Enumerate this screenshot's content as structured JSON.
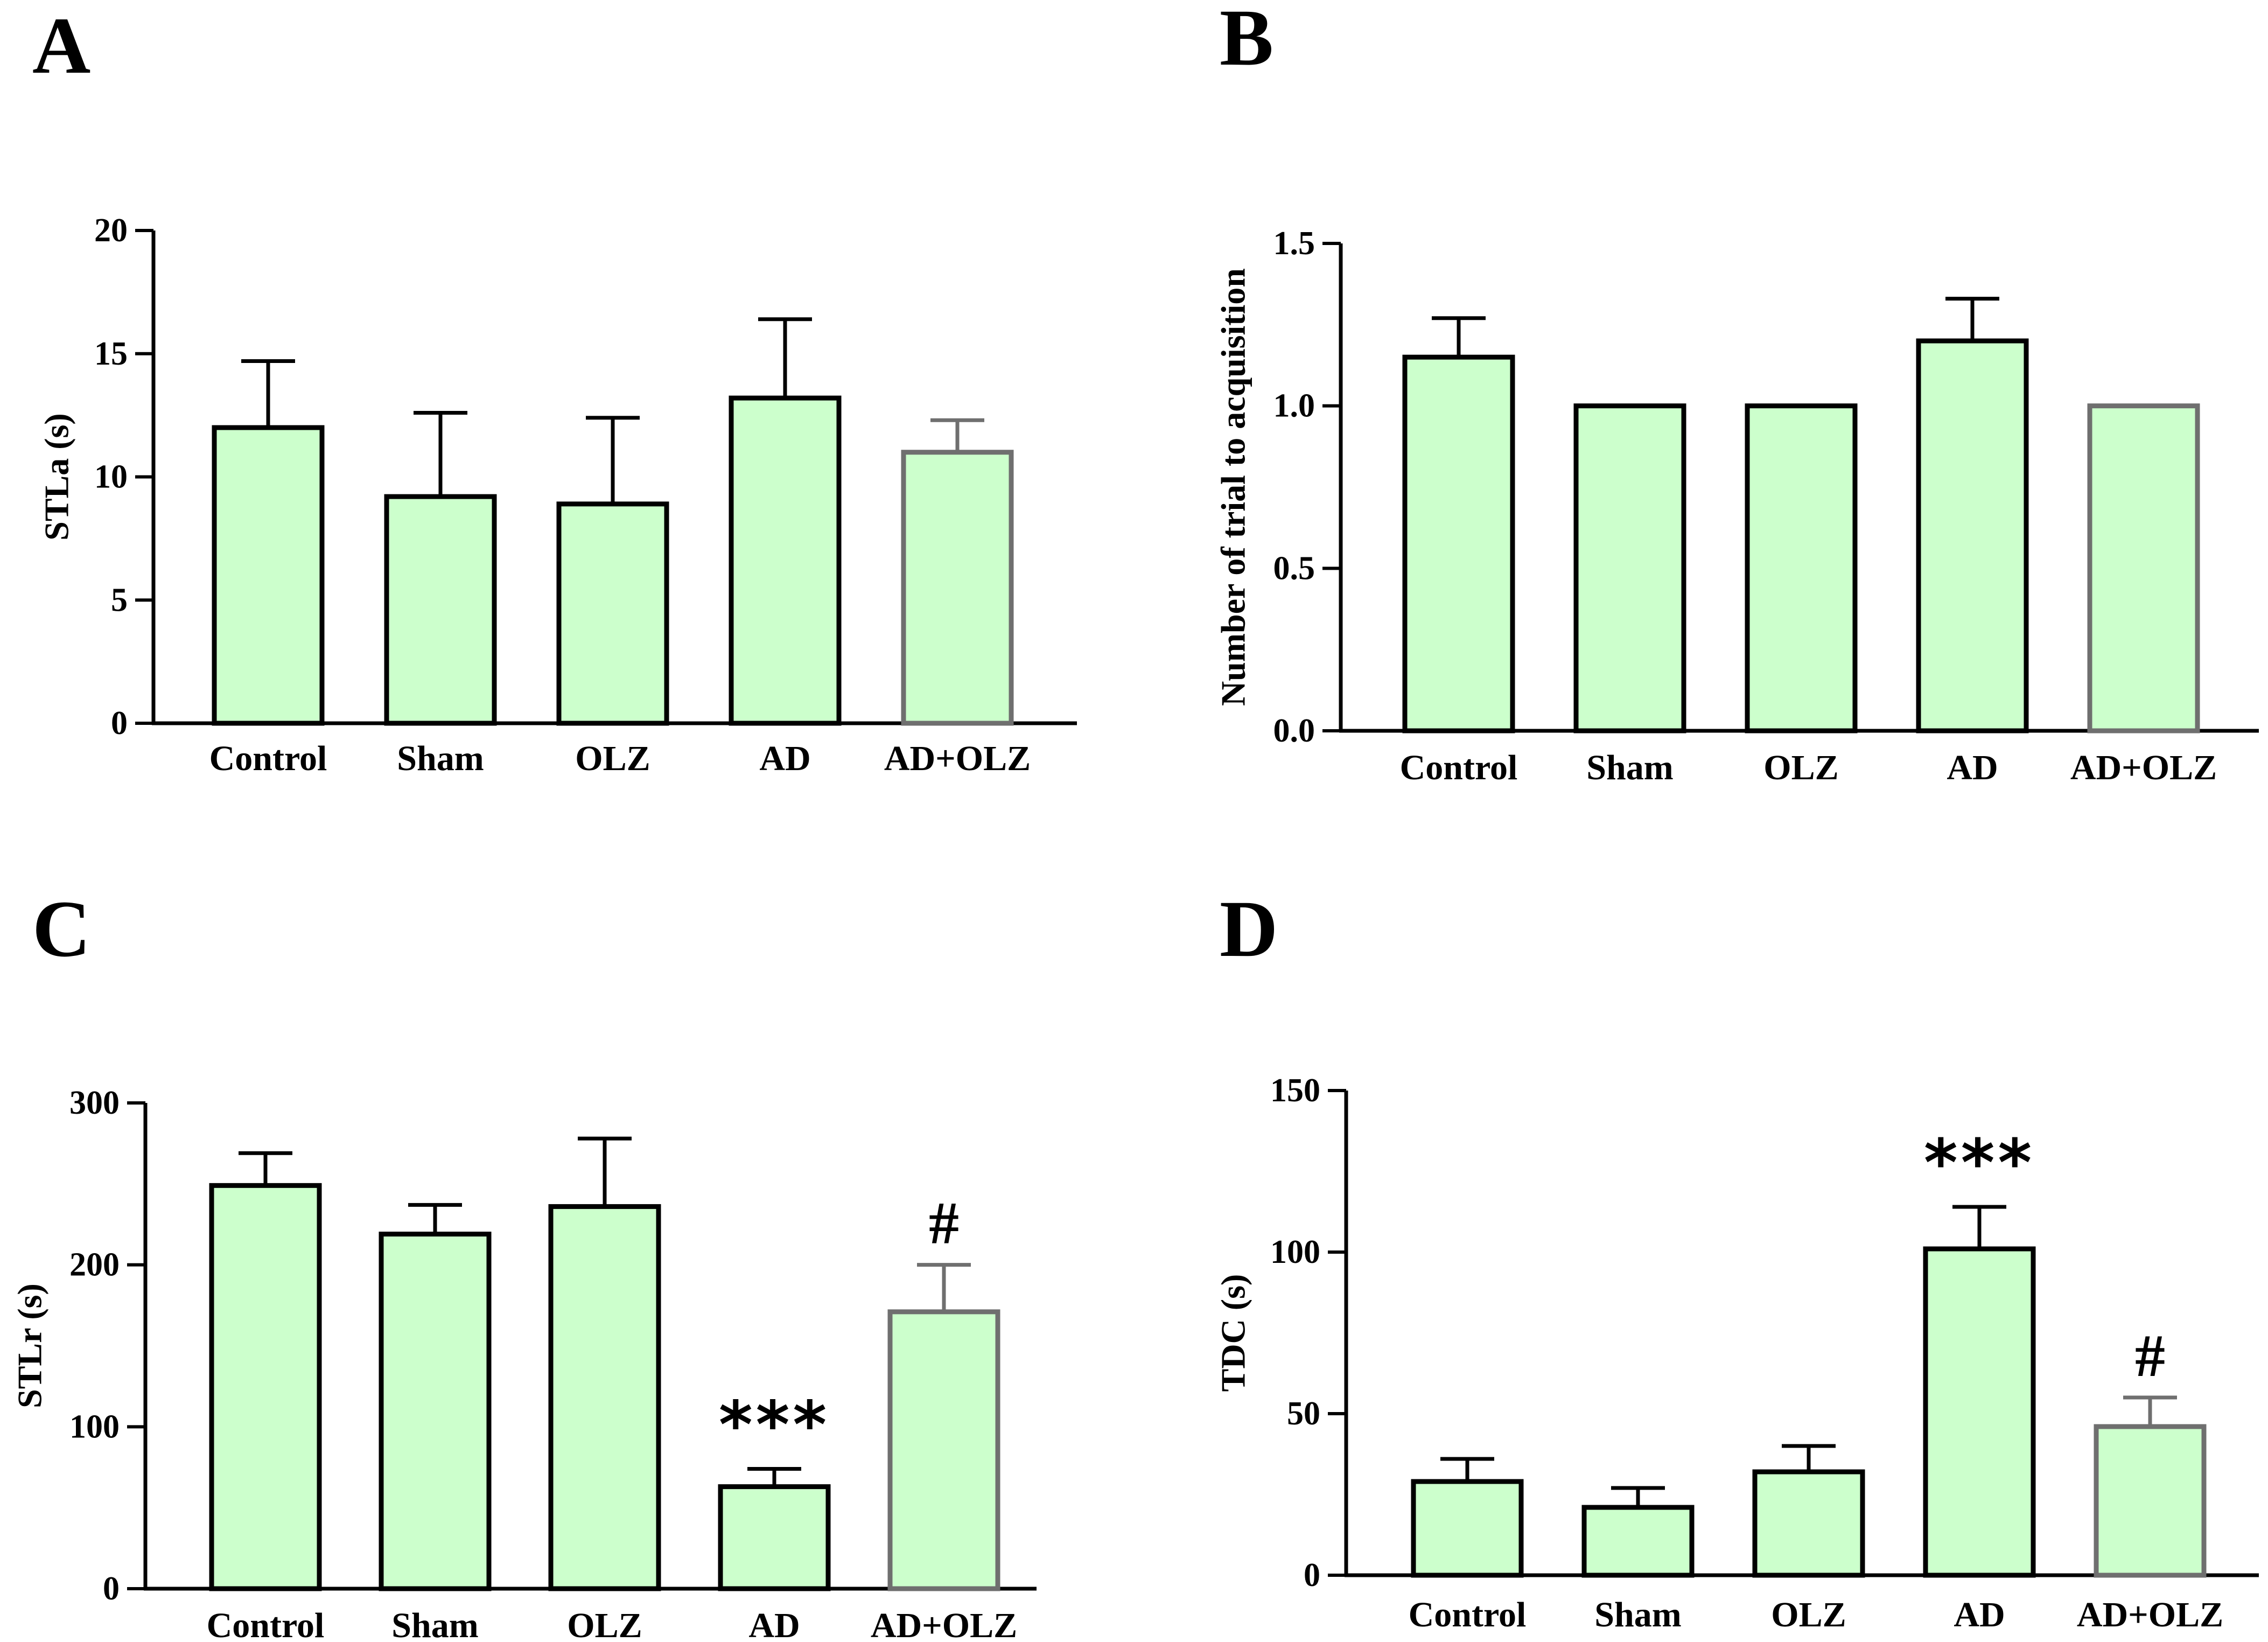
{
  "colors": {
    "bar_fill": "#ccffcc",
    "bar_stroke": "#000000",
    "bar_stroke_last": "#6f6f6f",
    "axis": "#000000"
  },
  "chart_data": [
    {
      "panel": "A",
      "type": "bar",
      "categories": [
        "Control",
        "Sham",
        "OLZ",
        "AD",
        "AD+OLZ"
      ],
      "values": [
        12.0,
        9.2,
        8.9,
        13.2,
        11.0
      ],
      "errors": [
        2.7,
        3.4,
        3.5,
        3.2,
        1.3
      ],
      "significance": [
        "",
        "",
        "",
        "",
        ""
      ],
      "ylabel": "STLa (s)",
      "ylim": [
        0,
        20
      ],
      "yticks": [
        0,
        5,
        10,
        15,
        20
      ],
      "ytick_labels": [
        "0",
        "5",
        "10",
        "15",
        "20"
      ]
    },
    {
      "panel": "B",
      "type": "bar",
      "categories": [
        "Control",
        "Sham",
        "OLZ",
        "AD",
        "AD+OLZ"
      ],
      "values": [
        1.15,
        1.0,
        1.0,
        1.2,
        1.0
      ],
      "errors": [
        0.12,
        0,
        0,
        0.13,
        0
      ],
      "significance": [
        "",
        "",
        "",
        "",
        ""
      ],
      "ylabel": "Number of trial to acquisition",
      "ylim": [
        0,
        1.5
      ],
      "yticks": [
        0,
        0.5,
        1.0,
        1.5
      ],
      "ytick_labels": [
        "0.0",
        "0.5",
        "1.0",
        "1.5"
      ]
    },
    {
      "panel": "C",
      "type": "bar",
      "categories": [
        "Control",
        "Sham",
        "OLZ",
        "AD",
        "AD+OLZ"
      ],
      "values": [
        249,
        219,
        236,
        63,
        171
      ],
      "errors": [
        20,
        18,
        42,
        11,
        29
      ],
      "significance": [
        "",
        "",
        "",
        "***",
        "#"
      ],
      "ylabel": "STLr (s)",
      "ylim": [
        0,
        300
      ],
      "yticks": [
        0,
        100,
        200,
        300
      ],
      "ytick_labels": [
        "0",
        "100",
        "200",
        "300"
      ]
    },
    {
      "panel": "D",
      "type": "bar",
      "categories": [
        "Control",
        "Sham",
        "OLZ",
        "AD",
        "AD+OLZ"
      ],
      "values": [
        29,
        21,
        32,
        101,
        46
      ],
      "errors": [
        7,
        6,
        8,
        13,
        9
      ],
      "significance": [
        "",
        "",
        "",
        "***",
        "#"
      ],
      "ylabel": "TDC (s)",
      "ylim": [
        0,
        150
      ],
      "yticks": [
        0,
        50,
        100,
        150
      ],
      "ytick_labels": [
        "0",
        "50",
        "100",
        "150"
      ]
    }
  ]
}
